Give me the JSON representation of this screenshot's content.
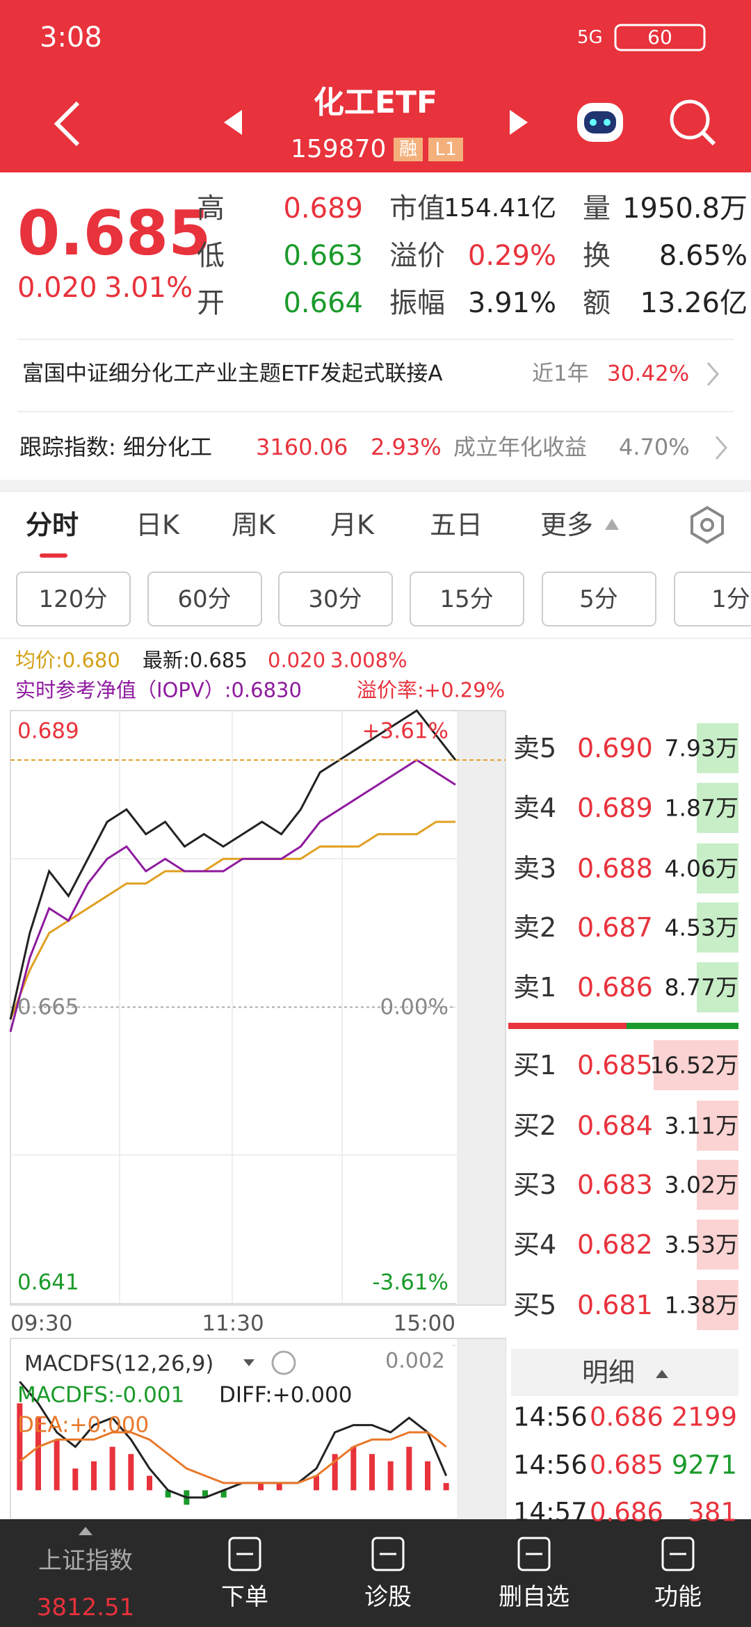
{
  "status_bar": {
    "time": "3:08",
    "network": "5G",
    "battery": "60"
  },
  "header": {
    "title": "化工ETF",
    "code": "159870",
    "badges": [
      "融",
      "L1"
    ]
  },
  "quote": {
    "price": "0.685",
    "change": "0.020",
    "change_pct": "3.01%",
    "stats": [
      {
        "label": "高",
        "value": "0.689"
      },
      {
        "label": "低",
        "value": "0.663"
      },
      {
        "label": "开",
        "value": "0.664"
      },
      {
        "label": "市值",
        "value": "154.41亿"
      },
      {
        "label": "溢价",
        "value": "0.29%"
      },
      {
        "label": "振幅",
        "value": "3.91%"
      },
      {
        "label": "量",
        "value": "1950.8万"
      },
      {
        "label": "换",
        "value": "8.65%"
      },
      {
        "label": "额",
        "value": "13.26亿"
      }
    ]
  },
  "fund_link": {
    "name": "富国中证细分化工产业主题ETF发起式联接A",
    "period": "近1年",
    "return": "30.42%"
  },
  "index_row": {
    "label": "跟踪指数: 细分化工",
    "value": "3160.06",
    "change": "2.93%",
    "since_label": "成立年化收益",
    "since_value": "4.70%"
  },
  "tabs": [
    "分时",
    "日K",
    "周K",
    "月K",
    "五日",
    "更多"
  ],
  "periods": [
    "120分",
    "60分",
    "30分",
    "15分",
    "5分",
    "1分"
  ],
  "info": {
    "avg": "均价:0.680",
    "latest": "最新:0.685",
    "change": "0.020",
    "change_pct": "3.008%",
    "iopv": "实时参考净值（IOPV）:0.6830",
    "premium": "溢价率:+0.29%"
  },
  "chart_data": [
    {
      "type": "line",
      "x_labels": [
        "09:30",
        "11:30",
        "15:00"
      ],
      "ylim": [
        0.641,
        0.689
      ],
      "yticks": [
        0.641,
        0.665,
        0.689
      ],
      "y2lim": [
        -3.61,
        3.61
      ],
      "y2ticks": [
        {
          "value": -3.61,
          "label": "-3.61%"
        },
        {
          "value": 0,
          "label": "0.00%"
        },
        {
          "value": 3.61,
          "label": "+3.61%"
        }
      ],
      "series": [
        {
          "color": "#222222",
          "values": [
            0.664,
            0.671,
            0.676,
            0.674,
            0.677,
            0.68,
            0.681,
            0.679,
            0.68,
            0.678,
            0.679,
            0.678,
            0.679,
            0.68,
            0.679,
            0.681,
            0.684,
            0.685,
            0.686,
            0.687,
            0.688,
            0.689,
            0.687,
            0.685
          ]
        },
        {
          "color": "#8e1a9e",
          "values": [
            0.663,
            0.669,
            0.673,
            0.672,
            0.675,
            0.677,
            0.678,
            0.676,
            0.677,
            0.676,
            0.676,
            0.676,
            0.677,
            0.677,
            0.677,
            0.678,
            0.68,
            0.681,
            0.682,
            0.683,
            0.684,
            0.685,
            0.684,
            0.683
          ]
        },
        {
          "color": "#e0a020",
          "values": [
            0.664,
            0.668,
            0.671,
            0.672,
            0.673,
            0.674,
            0.675,
            0.675,
            0.676,
            0.676,
            0.676,
            0.677,
            0.677,
            0.677,
            0.677,
            0.677,
            0.678,
            0.678,
            0.678,
            0.679,
            0.679,
            0.679,
            0.68,
            0.68
          ]
        }
      ]
    },
    {
      "type": "bar",
      "title": "MACDFS(12,26,9)",
      "labels": {
        "macd": "MACDFS:-0.001",
        "diff": "DIFF:+0.000",
        "dea": "DEA:+0.000"
      },
      "ylim": [
        -0.0004,
        0.002
      ],
      "yticks": [
        0.002
      ],
      "colors": {
        "up": "#e8323c",
        "down": "#1a9a2a"
      },
      "values": [
        0.0012,
        0.001,
        0.0007,
        0.0003,
        0.0004,
        0.0006,
        0.0005,
        0.0002,
        -0.0001,
        -0.0002,
        -0.0001,
        -0.0001,
        0.0,
        0.0001,
        0.0001,
        0.0,
        0.0002,
        0.0005,
        0.0006,
        0.0005,
        0.0004,
        0.0006,
        0.0004,
        0.0001
      ],
      "series": [
        {
          "color": "#222222",
          "values": [
            0.0015,
            0.0012,
            0.0008,
            0.0006,
            0.0009,
            0.001,
            0.0007,
            0.0003,
            0.0,
            -0.0001,
            -0.0001,
            0.0,
            0.0001,
            0.0001,
            0.0001,
            0.0001,
            0.0003,
            0.0008,
            0.0009,
            0.0009,
            0.0008,
            0.001,
            0.0008,
            0.0002
          ]
        },
        {
          "color": "#e8782a",
          "values": [
            0.0004,
            0.0006,
            0.0007,
            0.0007,
            0.0007,
            0.0008,
            0.0008,
            0.0007,
            0.0005,
            0.0003,
            0.0002,
            0.0001,
            0.0001,
            0.0001,
            0.0001,
            0.0001,
            0.0002,
            0.0004,
            0.0006,
            0.0007,
            0.0007,
            0.0008,
            0.0008,
            0.0006
          ]
        }
      ]
    }
  ],
  "order_book": {
    "asks": [
      {
        "label": "卖5",
        "price": "0.690",
        "volume": "7.93万"
      },
      {
        "label": "卖4",
        "price": "0.689",
        "volume": "1.87万"
      },
      {
        "label": "卖3",
        "price": "0.688",
        "volume": "4.06万"
      },
      {
        "label": "卖2",
        "price": "0.687",
        "volume": "4.53万"
      },
      {
        "label": "卖1",
        "price": "0.686",
        "volume": "8.77万"
      }
    ],
    "bids": [
      {
        "label": "买1",
        "price": "0.685",
        "volume": "16.52万"
      },
      {
        "label": "买2",
        "price": "0.684",
        "volume": "3.11万"
      },
      {
        "label": "买3",
        "price": "0.683",
        "volume": "3.02万"
      },
      {
        "label": "买4",
        "price": "0.682",
        "volume": "3.53万"
      },
      {
        "label": "买5",
        "price": "0.681",
        "volume": "1.38万"
      }
    ]
  },
  "trades": {
    "title": "明细",
    "rows": [
      [
        "14:56",
        "0.686",
        "2199"
      ],
      [
        "14:56",
        "0.685",
        "9271"
      ],
      [
        "14:57",
        "0.686",
        "381"
      ]
    ]
  },
  "bottom_nav": {
    "index_name": "上证指数",
    "index_value": "3812.51",
    "items": [
      "下单",
      "诊股",
      "删自选",
      "功能"
    ]
  }
}
